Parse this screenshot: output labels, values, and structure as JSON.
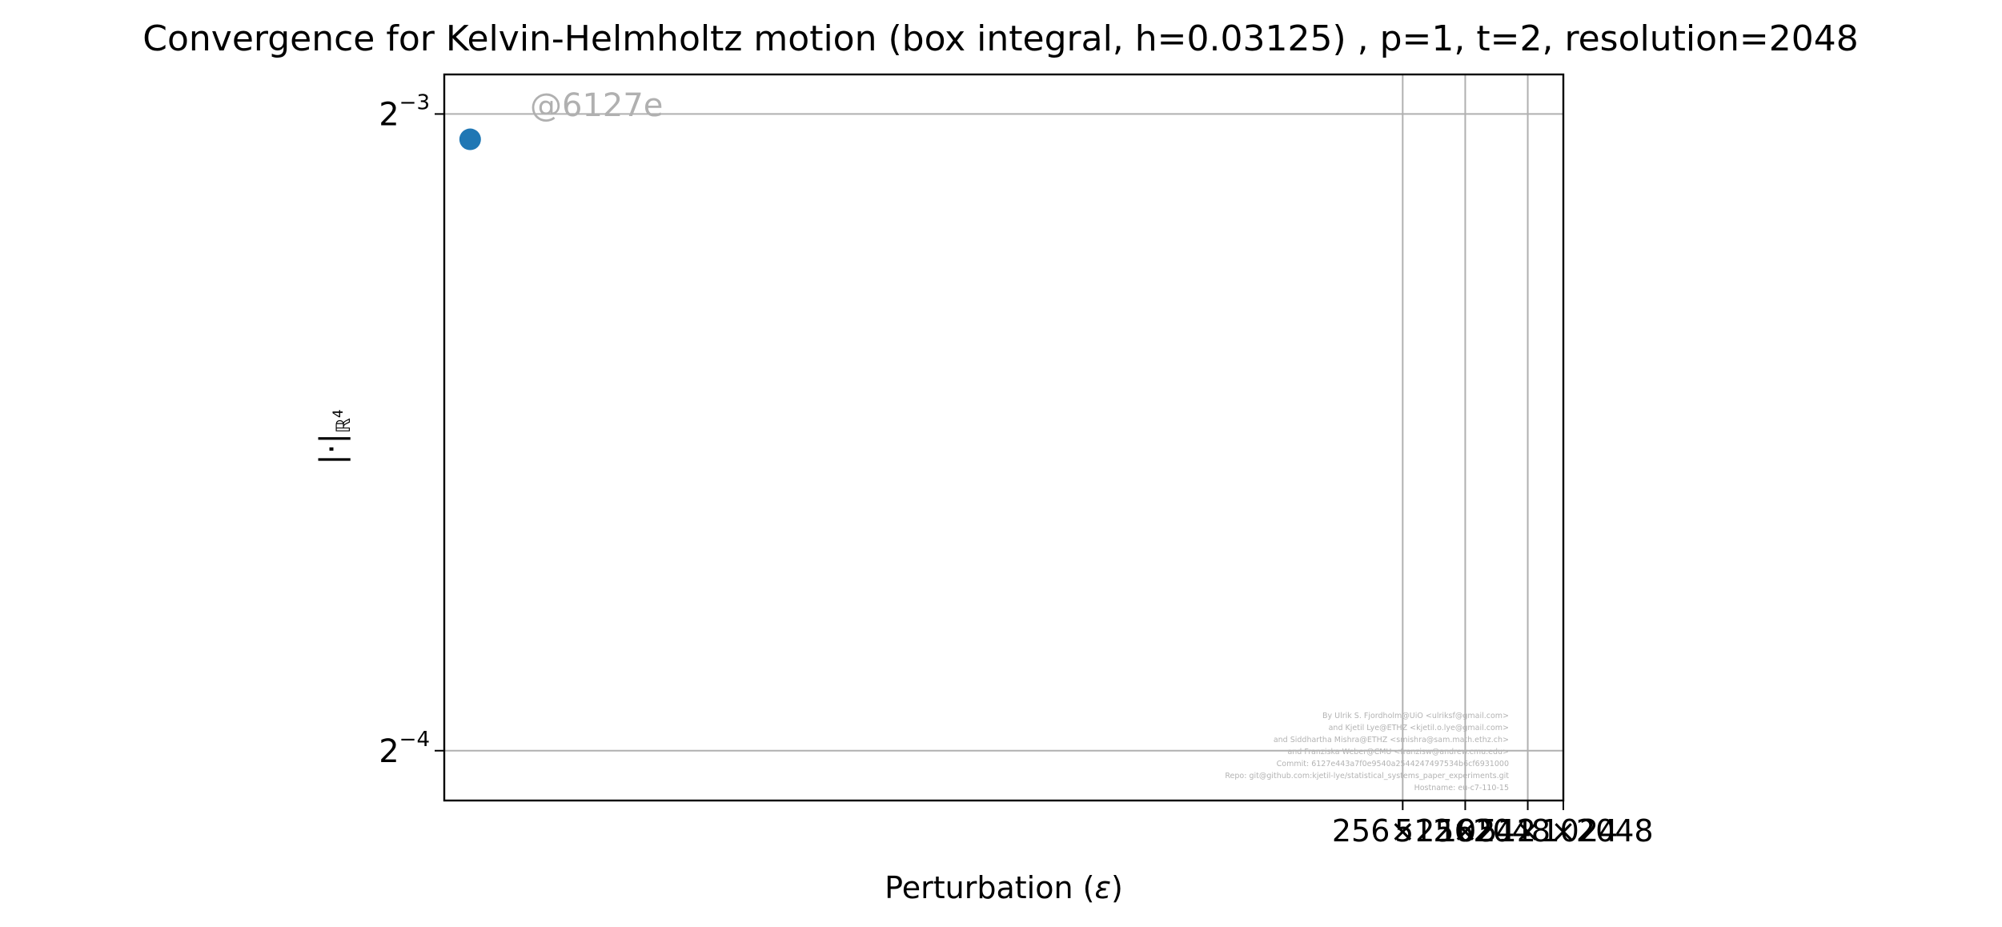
{
  "chart_data": {
    "type": "scatter",
    "title": "Convergence for Kelvin-Helmholtz motion (box integral, h=0.03125) , p=1, t=2, resolution=2048",
    "xlabel": "Perturbation ($\\epsilon$)",
    "ylabel": "$|\\cdot|_{\\mathbb{R}^4}$",
    "y_scale": "log2",
    "ylim": [
      0.0592,
      0.1305
    ],
    "y_ticks": [
      {
        "value": 0.125,
        "base": "2",
        "exponent": "−3"
      },
      {
        "value": 0.0625,
        "base": "2",
        "exponent": "−4"
      }
    ],
    "x_scale": "linear",
    "xlim": [
      -28,
      2048
    ],
    "x_ticks": [
      {
        "value": 1750,
        "label": "256×256"
      },
      {
        "value": 1866,
        "label": "512×512"
      },
      {
        "value": 1982,
        "label": "1024×1024"
      },
      {
        "value": 2048,
        "label": "2048×2048"
      }
    ],
    "grid": true,
    "series": [
      {
        "color": "#1f77b4",
        "points": [
          {
            "x": 20,
            "y": 0.1216
          }
        ]
      }
    ],
    "annotation": "@6127e",
    "credits": [
      "By Ulrik S. Fjordholm@UiO <ulriksf@gmail.com>",
      "and Kjetil Lye@ETHZ <kjetil.o.lye@gmail.com>",
      "and Siddhartha Mishra@ETHZ <smishra@sam.math.ethz.ch>",
      "and Franziska Weber@CMU <franzisw@andrew.cmu.edu>",
      "Commit: 6127e443a7f0e9540a2544247497534b6cf6931000",
      "Repo: git@github.com:kjetil-lye/statistical_systems_paper_experiments.git",
      "Hostname: eu-c7-110-15"
    ]
  }
}
